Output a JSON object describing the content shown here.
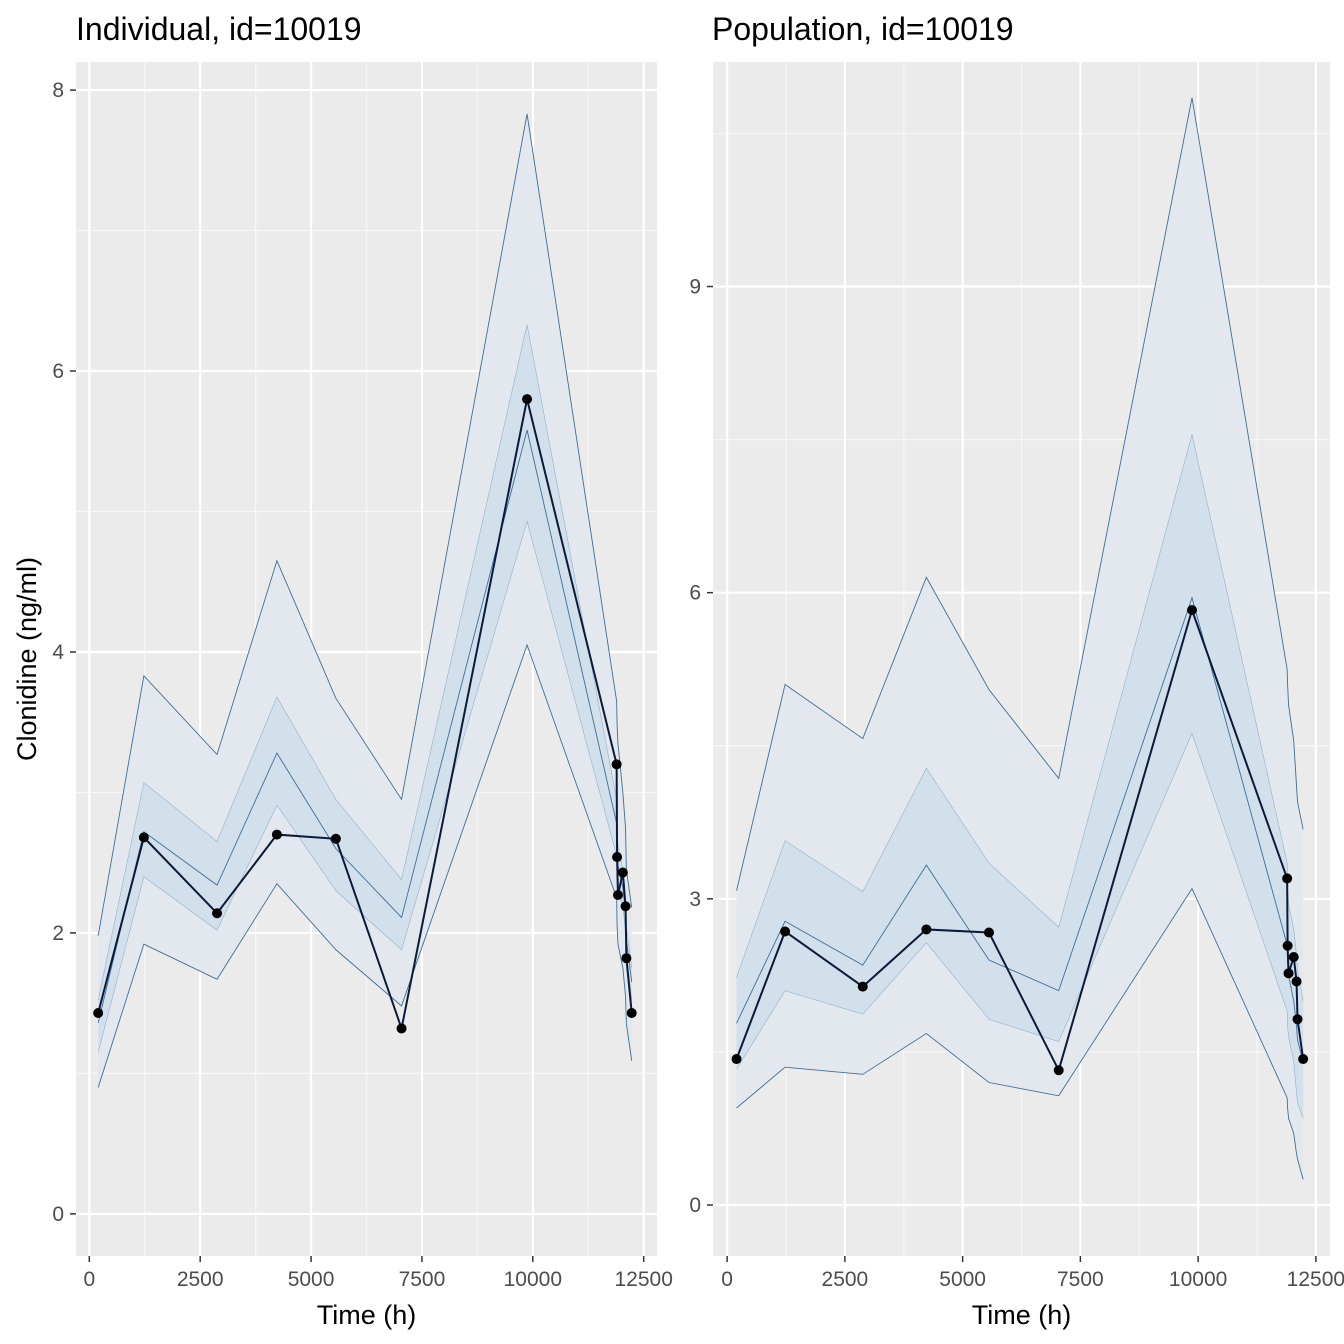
{
  "chart_data": [
    {
      "type": "line",
      "title": "Individual, id=10019",
      "xlabel": "Time (h)",
      "ylabel": "Clonidine (ng/ml)",
      "xlim": [
        -300,
        12800
      ],
      "ylim": [
        -0.3,
        8.2
      ],
      "x_ticks": [
        0,
        2500,
        5000,
        7500,
        10000,
        12500
      ],
      "x_tick_labels": [
        "0",
        "2500",
        "5000",
        "7500",
        "10000",
        "12500"
      ],
      "y_ticks": [
        0,
        2,
        4,
        6,
        8
      ],
      "y_tick_labels": [
        "0",
        "2",
        "4",
        "6",
        "8"
      ],
      "grid": true,
      "legend": "none",
      "x": [
        200,
        1230,
        2880,
        4230,
        5560,
        7040,
        9870,
        11890,
        11900,
        11920,
        12030,
        12090,
        12110,
        12230
      ],
      "observed": [
        1.43,
        2.68,
        2.14,
        2.7,
        2.67,
        1.32,
        5.8,
        3.2,
        2.54,
        2.27,
        2.43,
        2.19,
        1.82,
        1.43
      ],
      "series": [
        {
          "name": "",
          "values": [
            1.43,
            2.68,
            2.14,
            2.7,
            2.67,
            1.32,
            5.8,
            3.2,
            2.54,
            2.27,
            2.43,
            2.19,
            1.82,
            1.43
          ]
        }
      ],
      "bands": {
        "outer_upper": [
          1.98,
          3.83,
          3.27,
          4.65,
          3.67,
          2.95,
          7.83,
          3.65,
          3.48,
          3.35,
          3.0,
          2.75,
          2.45,
          2.18
        ],
        "outer_lower": [
          0.9,
          1.92,
          1.67,
          2.35,
          1.88,
          1.48,
          4.05,
          2.25,
          2.05,
          1.92,
          1.75,
          1.55,
          1.35,
          1.09
        ],
        "inner_upper": [
          1.52,
          3.07,
          2.65,
          3.68,
          2.95,
          2.38,
          6.33,
          2.95,
          2.75,
          2.62,
          2.45,
          2.25,
          2.05,
          1.75
        ],
        "inner_lower": [
          1.15,
          2.4,
          2.02,
          2.91,
          2.3,
          1.88,
          4.93,
          2.55,
          2.42,
          2.32,
          2.18,
          2.02,
          1.85,
          1.52
        ],
        "median": [
          1.36,
          2.72,
          2.34,
          3.28,
          2.6,
          2.11,
          5.58,
          2.78,
          2.6,
          2.48,
          2.32,
          2.15,
          1.95,
          1.65
        ]
      },
      "colors": {
        "band_outer": "#e2e8ee",
        "band_inner": "#d2e0eb",
        "band_line": "#3d6f99",
        "observed": "#0c1a3a",
        "panel_bg": "#ebebeb"
      }
    },
    {
      "type": "line",
      "title": "Population, id=10019",
      "xlabel": "Time (h)",
      "ylabel": "",
      "xlim": [
        -300,
        12800
      ],
      "ylim": [
        -0.5,
        11.2
      ],
      "x_ticks": [
        0,
        2500,
        5000,
        7500,
        10000,
        12500
      ],
      "x_tick_labels": [
        "0",
        "2500",
        "5000",
        "7500",
        "10000",
        "12500"
      ],
      "y_ticks": [
        0,
        3,
        6,
        9
      ],
      "y_tick_labels": [
        "0",
        "3",
        "6",
        "9"
      ],
      "grid": true,
      "legend": "none",
      "x": [
        200,
        1230,
        2880,
        4230,
        5560,
        7040,
        9870,
        11890,
        11900,
        11920,
        12030,
        12090,
        12110,
        12230
      ],
      "observed": [
        1.43,
        2.68,
        2.14,
        2.7,
        2.67,
        1.32,
        5.83,
        3.2,
        2.54,
        2.27,
        2.43,
        2.19,
        1.82,
        1.43
      ],
      "series": [
        {
          "name": "",
          "values": [
            1.43,
            2.68,
            2.14,
            2.7,
            2.67,
            1.32,
            5.83,
            3.2,
            2.54,
            2.27,
            2.43,
            2.19,
            1.82,
            1.43
          ]
        }
      ],
      "bands": {
        "outer_upper": [
          3.08,
          5.1,
          4.57,
          6.15,
          5.05,
          4.18,
          10.85,
          5.25,
          5.1,
          4.9,
          4.55,
          4.1,
          3.95,
          3.68
        ],
        "outer_lower": [
          0.95,
          1.35,
          1.28,
          1.68,
          1.2,
          1.07,
          3.1,
          1.05,
          0.95,
          0.85,
          0.7,
          0.5,
          0.45,
          0.25
        ],
        "inner_upper": [
          2.23,
          3.57,
          3.07,
          4.28,
          3.35,
          2.72,
          7.55,
          3.35,
          3.1,
          2.95,
          2.7,
          2.45,
          2.3,
          2.0
        ],
        "inner_lower": [
          1.33,
          2.1,
          1.87,
          2.57,
          1.82,
          1.6,
          4.62,
          1.9,
          1.75,
          1.65,
          1.4,
          1.1,
          1.0,
          0.85
        ],
        "median": [
          1.78,
          2.78,
          2.35,
          3.33,
          2.4,
          2.1,
          5.95,
          2.55,
          2.38,
          2.25,
          2.0,
          1.75,
          1.62,
          1.4
        ]
      },
      "colors": {
        "band_outer": "#e2e8ee",
        "band_inner": "#d2e0eb",
        "band_line": "#3d6f99",
        "observed": "#0c1a3a",
        "panel_bg": "#ebebeb"
      }
    }
  ]
}
